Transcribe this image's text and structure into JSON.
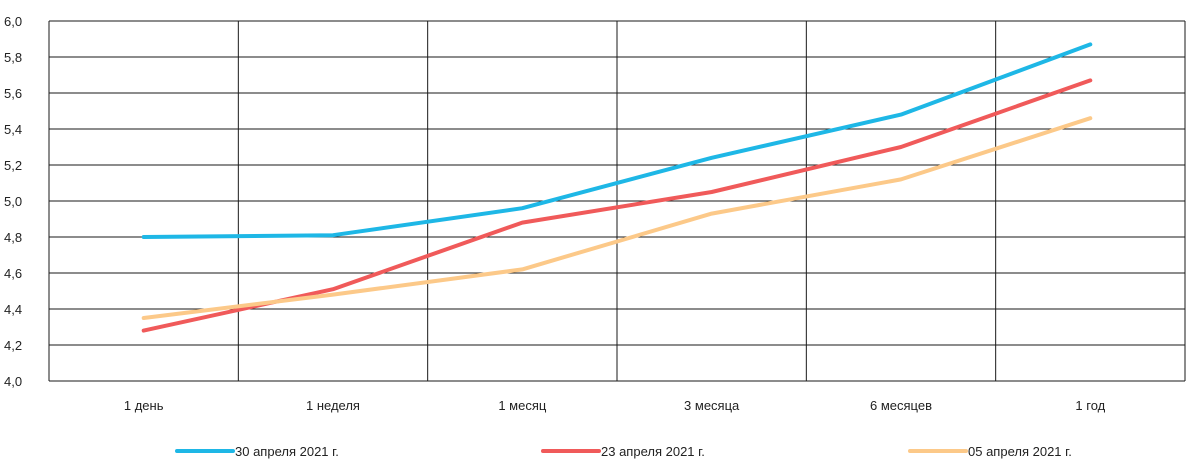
{
  "chart_data": {
    "type": "line",
    "categories": [
      "1 день",
      "1 неделя",
      "1 месяц",
      "3 месяца",
      "6 месяцев",
      "1 год"
    ],
    "y_ticks": [
      "4,0",
      "4,2",
      "4,4",
      "4,6",
      "4,8",
      "5,0",
      "5,2",
      "5,4",
      "5,6",
      "5,8",
      "6,0"
    ],
    "ylim": [
      4.0,
      6.0
    ],
    "grid": true,
    "legend_position": "bottom",
    "series": [
      {
        "name": "30 апреля 2021 г.",
        "color": "#1eb7e6",
        "values": [
          4.8,
          4.81,
          4.96,
          5.24,
          5.48,
          5.87
        ]
      },
      {
        "name": "23 апреля 2021 г.",
        "color": "#f05a5a",
        "values": [
          4.28,
          4.51,
          4.88,
          5.05,
          5.3,
          5.67
        ]
      },
      {
        "name": "05 апреля 2021 г.",
        "color": "#fcc989",
        "values": [
          4.35,
          4.48,
          4.62,
          4.93,
          5.12,
          5.46
        ]
      }
    ]
  }
}
